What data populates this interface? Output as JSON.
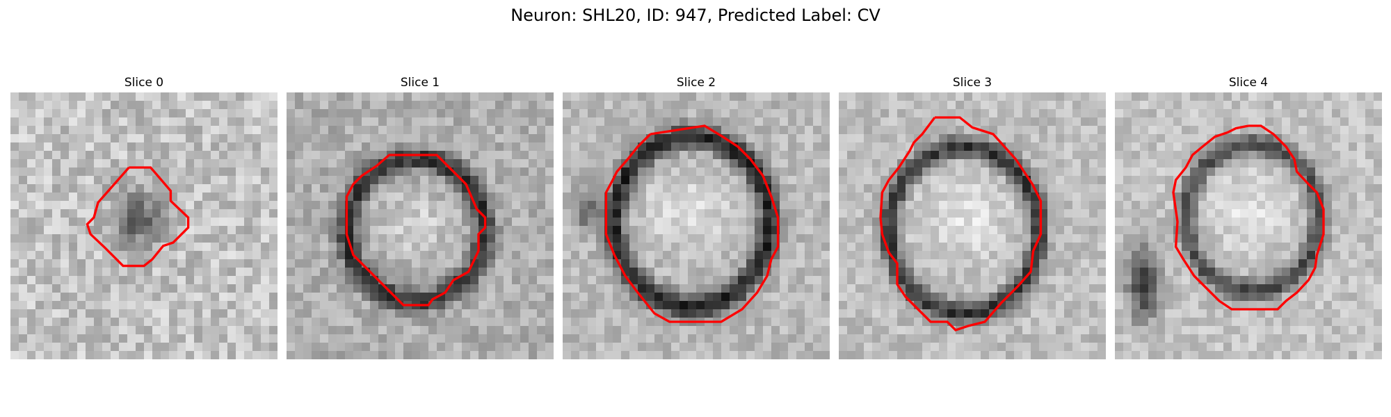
{
  "figure": {
    "title": "Neuron: SHL20, ID: 947, Predicted Label: CV",
    "contour_color": "#ff0000",
    "image_colormap": "grayscale"
  },
  "slices": [
    {
      "title": "Slice 0"
    },
    {
      "title": "Slice 1"
    },
    {
      "title": "Slice 2"
    },
    {
      "title": "Slice 3"
    },
    {
      "title": "Slice 4"
    }
  ]
}
